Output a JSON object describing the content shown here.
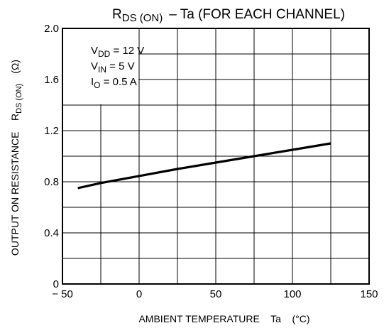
{
  "chart_data": {
    "type": "line",
    "title_main": "R",
    "title_sub": "DS (ON)",
    "title_rest": "–  Ta  (FOR EACH CHANNEL)",
    "xlabel": "AMBIENT TEMPERATURE    Ta    (°C)",
    "ylabel_main": "OUTPUT ON RESISTANCE    R",
    "ylabel_sub": "DS (ON)",
    "ylabel_unit": "(Ω)",
    "xlim": [
      -50,
      150
    ],
    "ylim": [
      0,
      2.0
    ],
    "x_ticks": [
      -50,
      0,
      50,
      100,
      150
    ],
    "x_tick_labels": [
      "− 50",
      "0",
      "50",
      "100",
      "150"
    ],
    "y_ticks": [
      0,
      0.4,
      0.8,
      1.2,
      1.6,
      2.0
    ],
    "y_tick_labels": [
      "0",
      "0.4",
      "0.8",
      "1.2",
      "1.6",
      "2.0"
    ],
    "grid": true,
    "conditions": [
      {
        "main": "V",
        "sub": "DD",
        "rest": " = 12 V"
      },
      {
        "main": "V",
        "sub": "IN",
        "rest": " = 5 V"
      },
      {
        "main": "I",
        "sub": "O",
        "rest": " = 0.5 A"
      }
    ],
    "series": [
      {
        "x": [
          -40,
          -25,
          0,
          25,
          50,
          75,
          100,
          125
        ],
        "values": [
          0.75,
          0.79,
          0.845,
          0.9,
          0.95,
          1.0,
          1.05,
          1.1
        ]
      }
    ]
  }
}
